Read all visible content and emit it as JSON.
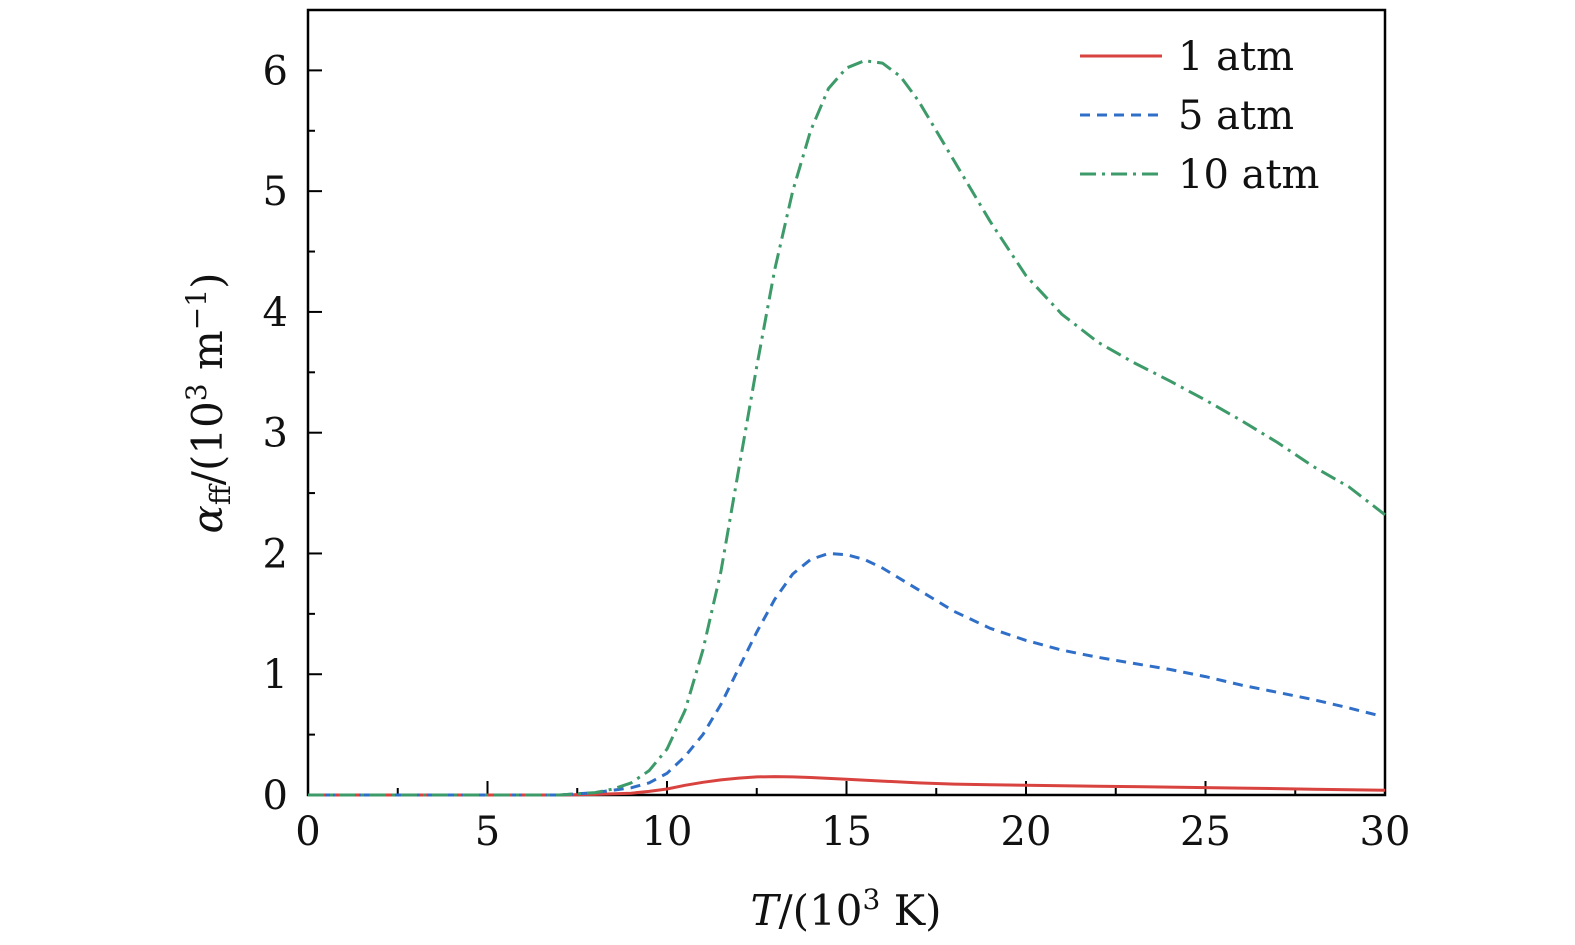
{
  "chart_data": {
    "type": "line",
    "title": "",
    "xlabel": {
      "italic": "T",
      "rest": "/(10",
      "sup": "3",
      "tail": " K)"
    },
    "ylabel": {
      "italic": "α",
      "sub": "ff",
      "rest": "/(10",
      "sup": "3",
      "mid": " m",
      "sup2": "−1",
      "tail": ")"
    },
    "xlim": [
      0,
      30
    ],
    "ylim": [
      0,
      6.5
    ],
    "x_ticks": [
      0,
      5,
      10,
      15,
      20,
      25,
      30
    ],
    "x_tick_labels": [
      "0",
      "5",
      "10",
      "15",
      "20",
      "25",
      "30"
    ],
    "y_ticks": [
      0,
      1,
      2,
      3,
      4,
      5,
      6
    ],
    "y_tick_labels": [
      "0",
      "1",
      "2",
      "3",
      "4",
      "5",
      "6"
    ],
    "grid": false,
    "legend_position": "top-right",
    "series": [
      {
        "name": "1 atm",
        "color": "#d9433f",
        "dash": "solid",
        "x": [
          0,
          2,
          4,
          6,
          7,
          8,
          9,
          9.5,
          10,
          10.5,
          11,
          11.5,
          12,
          12.5,
          13,
          13.5,
          14,
          15,
          16,
          17,
          18,
          19,
          20,
          22,
          24,
          26,
          28,
          30
        ],
        "y": [
          0,
          0,
          0,
          0,
          0,
          0.005,
          0.015,
          0.03,
          0.05,
          0.08,
          0.105,
          0.125,
          0.14,
          0.15,
          0.152,
          0.15,
          0.145,
          0.13,
          0.115,
          0.1,
          0.09,
          0.085,
          0.08,
          0.073,
          0.065,
          0.057,
          0.048,
          0.04
        ]
      },
      {
        "name": "5 atm",
        "color": "#2f6fc8",
        "dash": "dashed",
        "x": [
          0,
          2,
          4,
          6,
          7,
          7.5,
          8,
          8.5,
          9,
          9.5,
          10,
          10.5,
          11,
          11.5,
          12,
          12.5,
          13,
          13.5,
          14,
          14.5,
          15,
          15.5,
          16,
          17,
          18,
          19,
          20,
          21,
          22,
          23,
          24,
          25,
          26,
          27,
          28,
          29,
          29.8
        ],
        "y": [
          0,
          0,
          0,
          0,
          0,
          0.01,
          0.02,
          0.04,
          0.06,
          0.1,
          0.18,
          0.32,
          0.5,
          0.75,
          1.05,
          1.35,
          1.62,
          1.83,
          1.95,
          2.0,
          1.99,
          1.95,
          1.88,
          1.7,
          1.52,
          1.38,
          1.28,
          1.2,
          1.14,
          1.09,
          1.04,
          0.98,
          0.91,
          0.85,
          0.79,
          0.72,
          0.66
        ]
      },
      {
        "name": "10 atm",
        "color": "#3d9a69",
        "dash": "dashdot",
        "x": [
          0,
          2,
          4,
          6,
          7,
          7.5,
          8,
          8.5,
          9,
          9.5,
          10,
          10.5,
          11,
          11.5,
          12,
          12.5,
          13,
          13.5,
          14,
          14.5,
          15,
          15.5,
          16,
          16.5,
          17,
          17.5,
          18,
          19,
          20,
          21,
          22,
          23,
          24,
          25,
          26,
          27,
          28,
          29,
          30
        ],
        "y": [
          0,
          0,
          0,
          0,
          0,
          0.01,
          0.02,
          0.05,
          0.1,
          0.2,
          0.38,
          0.7,
          1.2,
          1.85,
          2.7,
          3.55,
          4.35,
          5.0,
          5.5,
          5.85,
          6.02,
          6.08,
          6.06,
          5.95,
          5.75,
          5.5,
          5.25,
          4.75,
          4.3,
          3.98,
          3.75,
          3.58,
          3.43,
          3.27,
          3.1,
          2.92,
          2.72,
          2.55,
          2.32
        ]
      }
    ]
  }
}
